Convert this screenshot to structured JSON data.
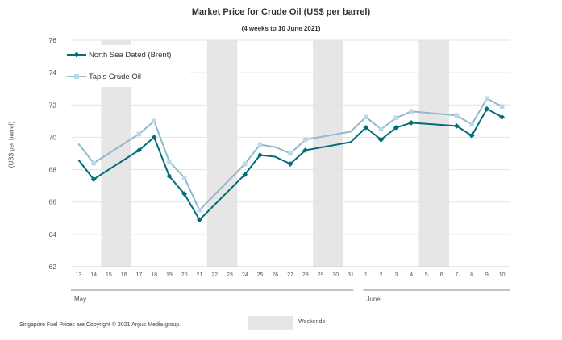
{
  "chart_data": {
    "type": "line",
    "title": "Market Price for Crude Oil  (US$  per barrel)",
    "subtitle": "(4 weeks to 10 June 2021)",
    "ylabel": "(US$ per barrel)",
    "xlabel": "",
    "ylim": [
      62,
      76
    ],
    "yticks": [
      62,
      64,
      66,
      68,
      70,
      72,
      74,
      76
    ],
    "categories": [
      "13",
      "14",
      "15",
      "16",
      "17",
      "18",
      "19",
      "20",
      "21",
      "22",
      "23",
      "24",
      "25",
      "26",
      "27",
      "28",
      "29",
      "30",
      "31",
      "1",
      "2",
      "3",
      "4",
      "5",
      "6",
      "7",
      "8",
      "9",
      "10"
    ],
    "month_labels": [
      {
        "label": "May",
        "from": 0,
        "to": 18
      },
      {
        "label": "June",
        "from": 19,
        "to": 28
      }
    ],
    "weekend_bands": [
      [
        15,
        16
      ],
      [
        22,
        23
      ],
      [
        29,
        30
      ],
      [
        5,
        6
      ]
    ],
    "legend_position": "top-left",
    "grid": true,
    "series": [
      {
        "name": "North Sea Dated (Brent)",
        "color": "#006e79",
        "marker": "diamond",
        "values": [
          68.6,
          67.4,
          null,
          null,
          69.2,
          70.0,
          67.6,
          66.5,
          64.9,
          null,
          null,
          67.7,
          68.9,
          68.8,
          68.35,
          69.2,
          null,
          null,
          69.7,
          70.6,
          69.85,
          70.6,
          70.9,
          null,
          null,
          70.7,
          70.1,
          71.75,
          71.25
        ],
        "points_shown": [
          false,
          true,
          false,
          false,
          true,
          true,
          true,
          true,
          true,
          false,
          false,
          true,
          true,
          false,
          true,
          true,
          false,
          false,
          false,
          true,
          true,
          true,
          true,
          false,
          false,
          true,
          true,
          true,
          true
        ]
      },
      {
        "name": "Tapis Crude Oil",
        "color": "#93b8c8",
        "marker_color": "#b7d9ef",
        "marker": "square",
        "values": [
          69.6,
          68.4,
          null,
          null,
          70.2,
          71.0,
          68.5,
          67.5,
          65.5,
          null,
          null,
          68.35,
          69.55,
          69.4,
          69.0,
          69.85,
          null,
          null,
          70.35,
          71.25,
          70.5,
          71.2,
          71.6,
          null,
          null,
          71.35,
          70.8,
          72.4,
          71.9
        ],
        "points_shown": [
          false,
          true,
          false,
          false,
          true,
          true,
          true,
          true,
          true,
          false,
          false,
          true,
          true,
          false,
          true,
          true,
          false,
          false,
          false,
          true,
          true,
          true,
          true,
          false,
          false,
          true,
          true,
          true,
          true
        ]
      }
    ]
  },
  "footer": {
    "copyright": "Singapore  Fuel Prices are Copyright © 2021  Argus Media group.",
    "weekends_label": "Weekends"
  }
}
